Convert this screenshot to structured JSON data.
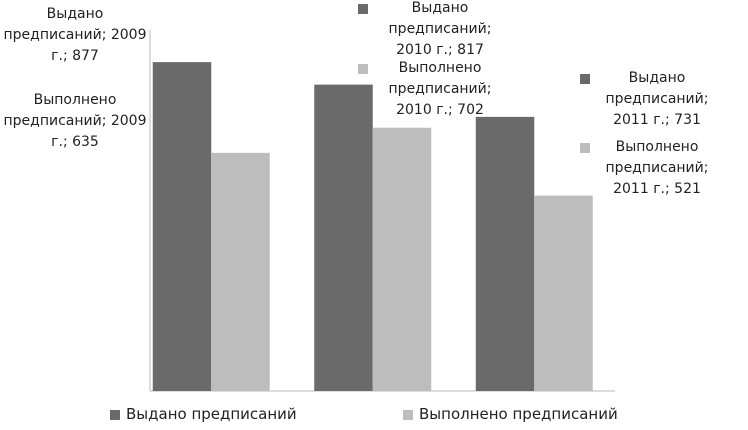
{
  "chart_data": {
    "type": "bar",
    "categories": [
      null,
      null,
      null
    ],
    "series": [
      {
        "name": "Выдано предписаний",
        "color": "#6a6a6a",
        "values": [
          877,
          817,
          731
        ],
        "value_labels": [
          "Выдано предписаний; 2009 г.; 877",
          "Выдано предписаний; 2010 г.; 817",
          "Выдано предписаний; 2011 г.; 731"
        ]
      },
      {
        "name": "Выполнено предписаний",
        "color": "#bdbdbd",
        "values": [
          635,
          702,
          521
        ],
        "value_labels": [
          "Выполнено предписаний; 2009 г.; 635",
          "Выполнено предписаний; 2010 г.; 702",
          "Выполнено предписаний; 2011 г.; 521"
        ]
      }
    ],
    "ylim": [
      0,
      1000
    ]
  }
}
